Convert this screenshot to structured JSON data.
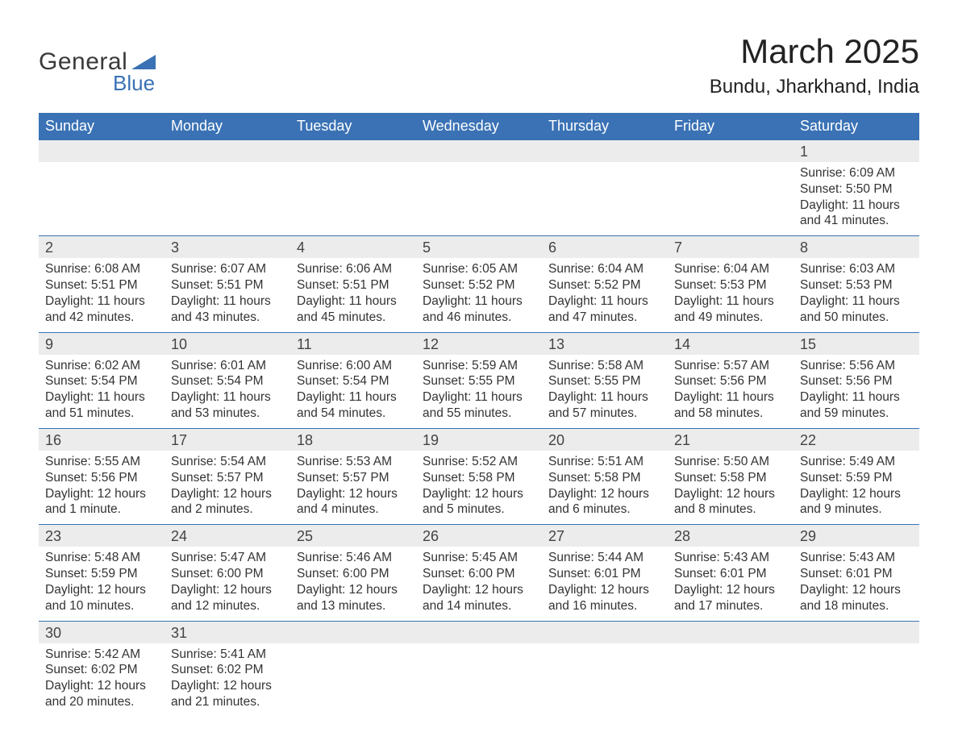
{
  "brand": {
    "general": "General",
    "blue": "Blue",
    "tri_color": "#3a72b5"
  },
  "title": "March 2025",
  "location": "Bundu, Jharkhand, India",
  "colors": {
    "header_bg": "#3a72b5",
    "header_fg": "#ffffff",
    "daynum_bg": "#ececec",
    "text": "#333333",
    "rule": "#3a72b5",
    "page_bg": "#ffffff"
  },
  "typography": {
    "base_family": "Arial",
    "title_size_pt": 32,
    "location_size_pt": 18,
    "header_size_pt": 14,
    "daynum_size_pt": 14,
    "cell_size_pt": 12
  },
  "columns": [
    "Sunday",
    "Monday",
    "Tuesday",
    "Wednesday",
    "Thursday",
    "Friday",
    "Saturday"
  ],
  "weeks": [
    {
      "nums": [
        "",
        "",
        "",
        "",
        "",
        "",
        "1"
      ],
      "cells": [
        "",
        "",
        "",
        "",
        "",
        "",
        "Sunrise: 6:09 AM\nSunset: 5:50 PM\nDaylight: 11 hours and 41 minutes."
      ]
    },
    {
      "nums": [
        "2",
        "3",
        "4",
        "5",
        "6",
        "7",
        "8"
      ],
      "cells": [
        "Sunrise: 6:08 AM\nSunset: 5:51 PM\nDaylight: 11 hours and 42 minutes.",
        "Sunrise: 6:07 AM\nSunset: 5:51 PM\nDaylight: 11 hours and 43 minutes.",
        "Sunrise: 6:06 AM\nSunset: 5:51 PM\nDaylight: 11 hours and 45 minutes.",
        "Sunrise: 6:05 AM\nSunset: 5:52 PM\nDaylight: 11 hours and 46 minutes.",
        "Sunrise: 6:04 AM\nSunset: 5:52 PM\nDaylight: 11 hours and 47 minutes.",
        "Sunrise: 6:04 AM\nSunset: 5:53 PM\nDaylight: 11 hours and 49 minutes.",
        "Sunrise: 6:03 AM\nSunset: 5:53 PM\nDaylight: 11 hours and 50 minutes."
      ]
    },
    {
      "nums": [
        "9",
        "10",
        "11",
        "12",
        "13",
        "14",
        "15"
      ],
      "cells": [
        "Sunrise: 6:02 AM\nSunset: 5:54 PM\nDaylight: 11 hours and 51 minutes.",
        "Sunrise: 6:01 AM\nSunset: 5:54 PM\nDaylight: 11 hours and 53 minutes.",
        "Sunrise: 6:00 AM\nSunset: 5:54 PM\nDaylight: 11 hours and 54 minutes.",
        "Sunrise: 5:59 AM\nSunset: 5:55 PM\nDaylight: 11 hours and 55 minutes.",
        "Sunrise: 5:58 AM\nSunset: 5:55 PM\nDaylight: 11 hours and 57 minutes.",
        "Sunrise: 5:57 AM\nSunset: 5:56 PM\nDaylight: 11 hours and 58 minutes.",
        "Sunrise: 5:56 AM\nSunset: 5:56 PM\nDaylight: 11 hours and 59 minutes."
      ]
    },
    {
      "nums": [
        "16",
        "17",
        "18",
        "19",
        "20",
        "21",
        "22"
      ],
      "cells": [
        "Sunrise: 5:55 AM\nSunset: 5:56 PM\nDaylight: 12 hours and 1 minute.",
        "Sunrise: 5:54 AM\nSunset: 5:57 PM\nDaylight: 12 hours and 2 minutes.",
        "Sunrise: 5:53 AM\nSunset: 5:57 PM\nDaylight: 12 hours and 4 minutes.",
        "Sunrise: 5:52 AM\nSunset: 5:58 PM\nDaylight: 12 hours and 5 minutes.",
        "Sunrise: 5:51 AM\nSunset: 5:58 PM\nDaylight: 12 hours and 6 minutes.",
        "Sunrise: 5:50 AM\nSunset: 5:58 PM\nDaylight: 12 hours and 8 minutes.",
        "Sunrise: 5:49 AM\nSunset: 5:59 PM\nDaylight: 12 hours and 9 minutes."
      ]
    },
    {
      "nums": [
        "23",
        "24",
        "25",
        "26",
        "27",
        "28",
        "29"
      ],
      "cells": [
        "Sunrise: 5:48 AM\nSunset: 5:59 PM\nDaylight: 12 hours and 10 minutes.",
        "Sunrise: 5:47 AM\nSunset: 6:00 PM\nDaylight: 12 hours and 12 minutes.",
        "Sunrise: 5:46 AM\nSunset: 6:00 PM\nDaylight: 12 hours and 13 minutes.",
        "Sunrise: 5:45 AM\nSunset: 6:00 PM\nDaylight: 12 hours and 14 minutes.",
        "Sunrise: 5:44 AM\nSunset: 6:01 PM\nDaylight: 12 hours and 16 minutes.",
        "Sunrise: 5:43 AM\nSunset: 6:01 PM\nDaylight: 12 hours and 17 minutes.",
        "Sunrise: 5:43 AM\nSunset: 6:01 PM\nDaylight: 12 hours and 18 minutes."
      ]
    },
    {
      "nums": [
        "30",
        "31",
        "",
        "",
        "",
        "",
        ""
      ],
      "cells": [
        "Sunrise: 5:42 AM\nSunset: 6:02 PM\nDaylight: 12 hours and 20 minutes.",
        "Sunrise: 5:41 AM\nSunset: 6:02 PM\nDaylight: 12 hours and 21 minutes.",
        "",
        "",
        "",
        "",
        ""
      ]
    }
  ]
}
